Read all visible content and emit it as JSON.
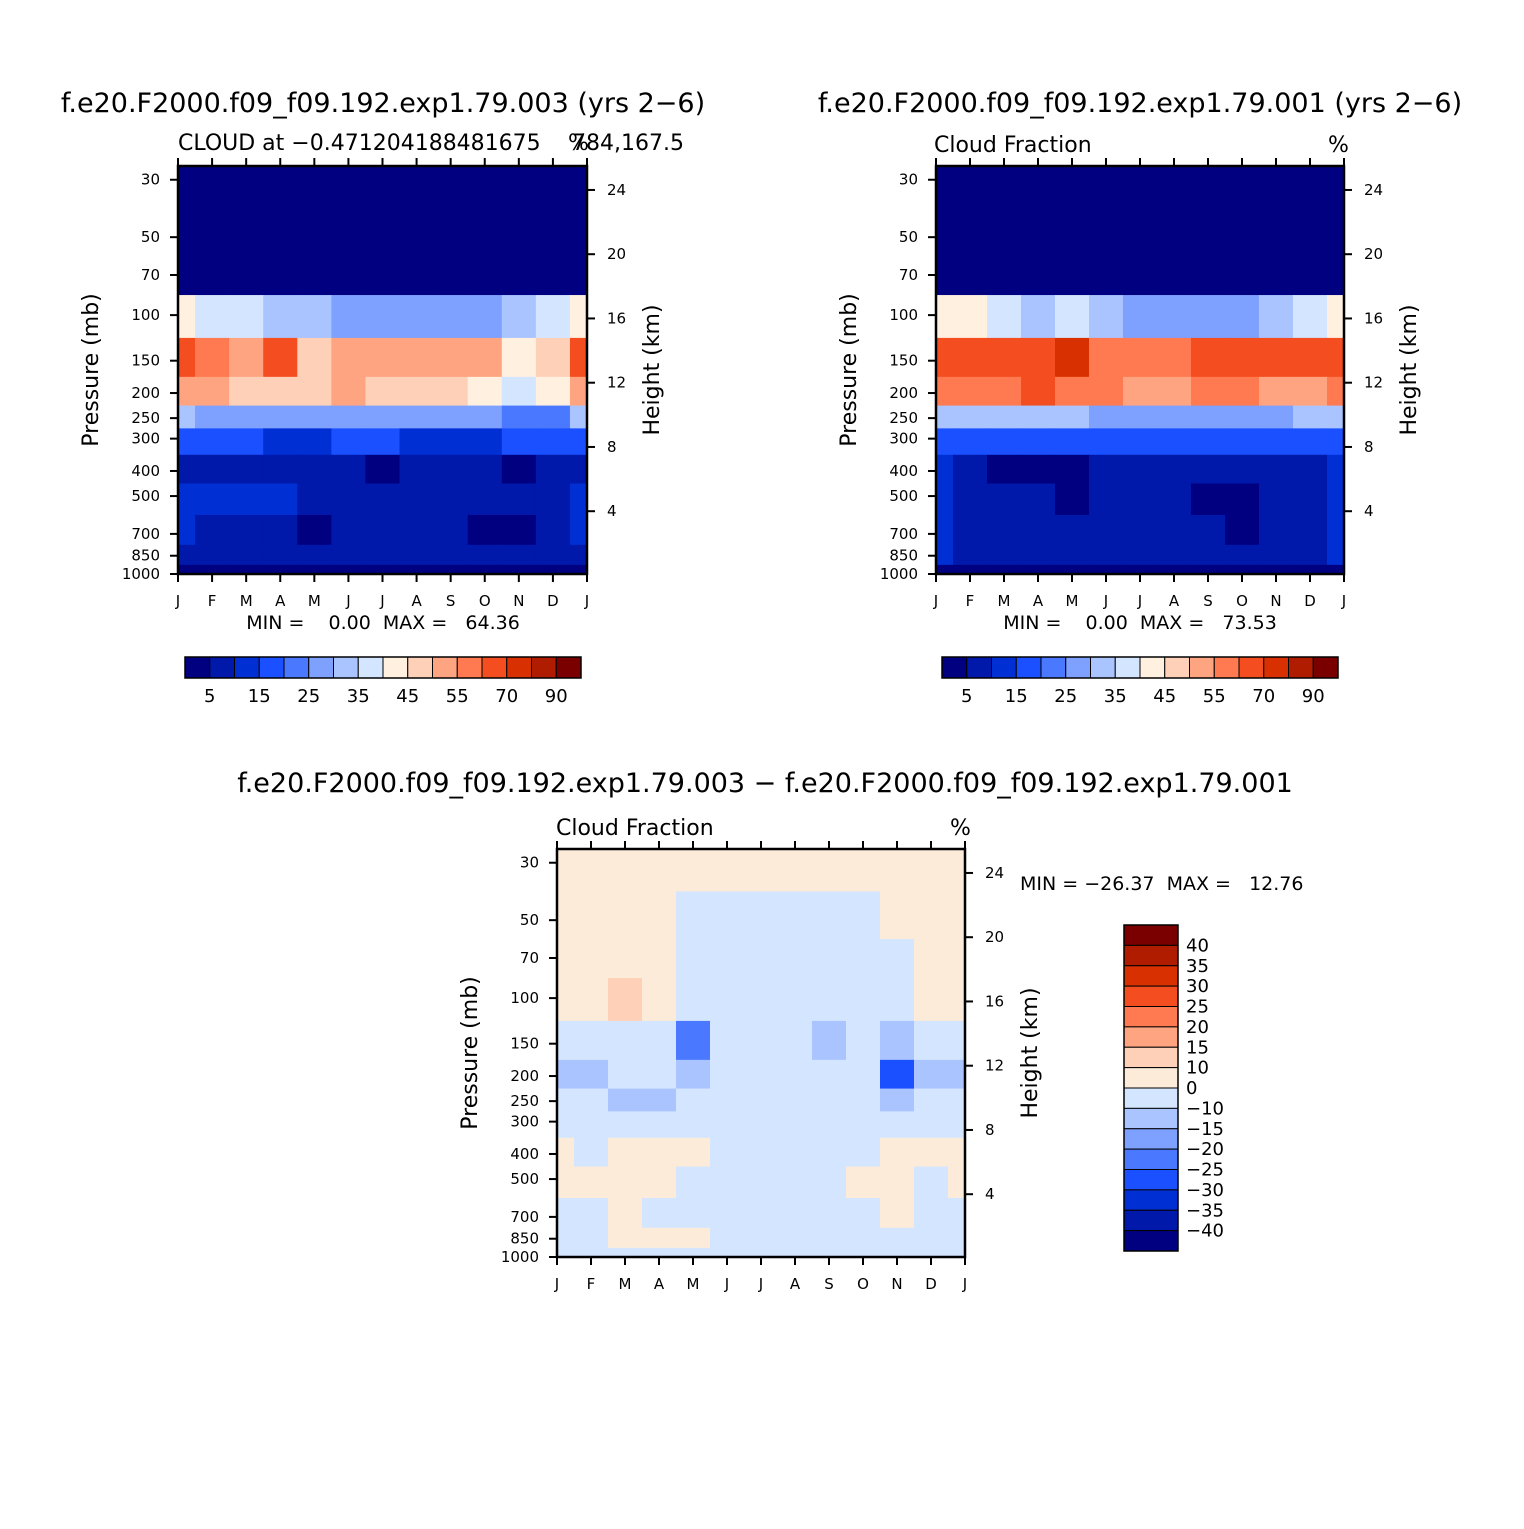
{
  "colors": {
    "scale": [
      "#000080",
      "#0019aa",
      "#0030d4",
      "#1a50ff",
      "#4a78ff",
      "#7ea0ff",
      "#aac4ff",
      "#d4e6ff",
      "#fff0e0",
      "#ffd0b8",
      "#ffa480",
      "#ff7a50",
      "#f44e20",
      "#d83000",
      "#b01c00",
      "#7a0000"
    ],
    "diff_scale": [
      "#000080",
      "#0019aa",
      "#0030d4",
      "#1a50ff",
      "#4a78ff",
      "#7ea0ff",
      "#aac4ff",
      "#d4e6ff",
      "#fdebd9",
      "#ffd0b8",
      "#ffa480",
      "#ff7a50",
      "#f44e20",
      "#d83000",
      "#b01c00",
      "#7a0000"
    ]
  },
  "panel1": {
    "title": "f.e20.F2000.f09_f09.192.exp1.79.003 (yrs 2−6)",
    "sub_left": "CLOUD at −0.471204188481675",
    "sub_right_overlap": "784,167.5",
    "units": "%",
    "minmax": "MIN =    0.00  MAX =   64.36"
  },
  "panel2": {
    "title": "f.e20.F2000.f09_f09.192.exp1.79.001 (yrs 2−6)",
    "sub_left": "Cloud Fraction",
    "units": "%",
    "minmax": "MIN =    0.00  MAX =   73.53"
  },
  "panel3": {
    "title": "f.e20.F2000.f09_f09.192.exp1.79.003 − f.e20.F2000.f09_f09.192.exp1.79.001",
    "sub_left": "Cloud Fraction",
    "units": "%",
    "minmax": "MIN = −26.37  MAX =   12.76"
  },
  "axes": {
    "ylabel": "Pressure (mb)",
    "ylabel_right": "Height (km)",
    "pressure_ticks": [
      "30",
      "50",
      "70",
      "100",
      "150",
      "200",
      "250",
      "300",
      "400",
      "500",
      "700",
      "850",
      "1000"
    ],
    "height_ticks": [
      "24",
      "20",
      "16",
      "12",
      "8",
      "4"
    ],
    "months": [
      "J",
      "F",
      "M",
      "A",
      "M",
      "J",
      "J",
      "A",
      "S",
      "O",
      "N",
      "D",
      "J"
    ]
  },
  "colorbar": {
    "labels": [
      "5",
      "15",
      "25",
      "35",
      "45",
      "55",
      "70",
      "90"
    ]
  },
  "diff_colorbar": {
    "labels": [
      "40",
      "35",
      "30",
      "25",
      "20",
      "15",
      "10",
      "0",
      "−10",
      "−15",
      "−20",
      "−25",
      "−30",
      "−35",
      "−40"
    ]
  },
  "chart_data": [
    {
      "type": "heatmap",
      "title": "f.e20.F2000.f09_f09.192.exp1.79.003 (yrs 2−6)",
      "ylabel": "Pressure (mb)",
      "y2label": "Height (km)",
      "x": [
        "J",
        "F",
        "M",
        "A",
        "M",
        "J",
        "J",
        "A",
        "S",
        "O",
        "N",
        "D",
        "J"
      ],
      "y_pressure": [
        30,
        50,
        70,
        100,
        150,
        200,
        250,
        300,
        400,
        500,
        700,
        850,
        1000
      ],
      "min": 0.0,
      "max": 64.36,
      "levels": [
        5,
        10,
        15,
        20,
        25,
        30,
        35,
        40,
        45,
        50,
        55,
        60,
        70,
        80,
        90
      ],
      "rows": [
        [
          0,
          0,
          0,
          0,
          0,
          0,
          0,
          0,
          0,
          0,
          0,
          0,
          0
        ],
        [
          0,
          0,
          0,
          0,
          0,
          0,
          0,
          0,
          0,
          0,
          0,
          0,
          0
        ],
        [
          2,
          2,
          1,
          1,
          0,
          0,
          0,
          0,
          0,
          0,
          1,
          2,
          2
        ],
        [
          42,
          38,
          35,
          33,
          32,
          28,
          27,
          27,
          28,
          27,
          30,
          38,
          42
        ],
        [
          60,
          57,
          52,
          63,
          48,
          53,
          50,
          50,
          52,
          50,
          43,
          48,
          60
        ],
        [
          52,
          50,
          48,
          47,
          45,
          50,
          47,
          45,
          45,
          44,
          37,
          42,
          52
        ],
        [
          30,
          28,
          27,
          26,
          25,
          27,
          25,
          25,
          25,
          25,
          22,
          24,
          30
        ],
        [
          18,
          16,
          15,
          14,
          14,
          15,
          15,
          14,
          14,
          14,
          15,
          16,
          18
        ],
        [
          8,
          5,
          7,
          6,
          8,
          6,
          4,
          6,
          7,
          7,
          4,
          6,
          8
        ],
        [
          12,
          10,
          11,
          10,
          5,
          7,
          8,
          8,
          9,
          8,
          8,
          9,
          12
        ],
        [
          10,
          7,
          8,
          7,
          4,
          5,
          6,
          7,
          6,
          4,
          4,
          7,
          10
        ],
        [
          9,
          8,
          7,
          8,
          6,
          7,
          7,
          7,
          6,
          5,
          6,
          7,
          9
        ],
        [
          0,
          0,
          0,
          0,
          0,
          0,
          0,
          0,
          0,
          0,
          0,
          0,
          0
        ]
      ]
    },
    {
      "type": "heatmap",
      "title": "f.e20.F2000.f09_f09.192.exp1.79.001 (yrs 2−6)",
      "ylabel": "Pressure (mb)",
      "y2label": "Height (km)",
      "x": [
        "J",
        "F",
        "M",
        "A",
        "M",
        "J",
        "J",
        "A",
        "S",
        "O",
        "N",
        "D",
        "J"
      ],
      "y_pressure": [
        30,
        50,
        70,
        100,
        150,
        200,
        250,
        300,
        400,
        500,
        700,
        850,
        1000
      ],
      "min": 0.0,
      "max": 73.53,
      "levels": [
        5,
        10,
        15,
        20,
        25,
        30,
        35,
        40,
        45,
        50,
        55,
        60,
        70,
        80,
        90
      ],
      "rows": [
        [
          0,
          0,
          0,
          0,
          0,
          0,
          0,
          0,
          0,
          0,
          0,
          0,
          0
        ],
        [
          0,
          0,
          0,
          0,
          0,
          0,
          0,
          0,
          0,
          0,
          0,
          0,
          0
        ],
        [
          2,
          2,
          1,
          1,
          0,
          0,
          0,
          0,
          0,
          0,
          1,
          2,
          2
        ],
        [
          42,
          40,
          36,
          34,
          36,
          30,
          28,
          28,
          28,
          28,
          30,
          36,
          42
        ],
        [
          62,
          68,
          60,
          62,
          70,
          58,
          55,
          56,
          62,
          62,
          62,
          60,
          62
        ],
        [
          56,
          58,
          58,
          62,
          58,
          55,
          52,
          52,
          56,
          56,
          54,
          54,
          56
        ],
        [
          32,
          32,
          30,
          30,
          30,
          28,
          28,
          28,
          28,
          28,
          28,
          30,
          32
        ],
        [
          18,
          17,
          16,
          16,
          16,
          15,
          15,
          15,
          15,
          15,
          16,
          17,
          18
        ],
        [
          10,
          6,
          4,
          4,
          3,
          6,
          7,
          7,
          7,
          7,
          8,
          8,
          10
        ],
        [
          10,
          8,
          6,
          6,
          4,
          8,
          9,
          9,
          4,
          3,
          8,
          9,
          10
        ],
        [
          12,
          8,
          8,
          8,
          5,
          7,
          9,
          9,
          5,
          3,
          8,
          9,
          12
        ],
        [
          10,
          9,
          9,
          8,
          5,
          9,
          9,
          9,
          8,
          8,
          8,
          9,
          10
        ],
        [
          0,
          0,
          0,
          0,
          0,
          0,
          0,
          0,
          0,
          0,
          0,
          0,
          0
        ]
      ]
    },
    {
      "type": "heatmap",
      "title": "f.e20.F2000.f09_f09.192.exp1.79.003 − f.e20.F2000.f09_f09.192.exp1.79.001",
      "ylabel": "Pressure (mb)",
      "y2label": "Height (km)",
      "x": [
        "J",
        "F",
        "M",
        "A",
        "M",
        "J",
        "J",
        "A",
        "S",
        "O",
        "N",
        "D",
        "J"
      ],
      "y_pressure": [
        30,
        50,
        70,
        100,
        150,
        200,
        250,
        300,
        400,
        500,
        700,
        850,
        1000
      ],
      "min": -26.37,
      "max": 12.76,
      "levels": [
        -40,
        -35,
        -30,
        -25,
        -20,
        -15,
        -10,
        0,
        10,
        15,
        20,
        25,
        30,
        35,
        40
      ],
      "rows": [
        [
          1,
          1,
          1,
          1,
          1,
          1,
          1,
          1,
          1,
          1,
          1,
          1,
          1
        ],
        [
          1,
          1,
          1,
          1,
          -1,
          -1,
          -1,
          -1,
          -1,
          -1,
          1,
          1,
          1
        ],
        [
          1,
          1,
          1,
          1,
          -2,
          -2,
          -2,
          -2,
          -2,
          -2,
          -1,
          1,
          1
        ],
        [
          1,
          1,
          11,
          2,
          -5,
          -2,
          -2,
          -2,
          -5,
          -2,
          -2,
          1,
          1
        ],
        [
          -1,
          -5,
          -5,
          -2,
          -24,
          -2,
          -2,
          -2,
          -12,
          -2,
          -12,
          -5,
          -1
        ],
        [
          -12,
          -15,
          -8,
          -5,
          -12,
          -2,
          -2,
          -2,
          -2,
          -8,
          -26,
          -12,
          -12
        ],
        [
          -1,
          -10,
          -12,
          -12,
          -5,
          -2,
          -2,
          -2,
          -10,
          -8,
          -12,
          -2,
          -1
        ],
        [
          -1,
          -2,
          -2,
          -2,
          -2,
          -2,
          -2,
          -2,
          -2,
          -2,
          -2,
          -2,
          -1
        ],
        [
          1,
          -1,
          2,
          3,
          2,
          -1,
          -1,
          -1,
          -1,
          -1,
          2,
          1,
          1
        ],
        [
          1,
          2,
          2,
          2,
          -1,
          -1,
          -1,
          -1,
          -1,
          3,
          3,
          -1,
          1
        ],
        [
          -1,
          -1,
          2,
          -1,
          -1,
          -1,
          -1,
          -1,
          -1,
          -1,
          2,
          -1,
          -1
        ],
        [
          -1,
          -1,
          1,
          2,
          1,
          -1,
          -1,
          -1,
          -1,
          -1,
          -1,
          -1,
          -1
        ],
        [
          -1,
          -1,
          -1,
          -1,
          -1,
          -1,
          -1,
          -1,
          -1,
          -1,
          -1,
          -1,
          -1
        ]
      ]
    }
  ]
}
